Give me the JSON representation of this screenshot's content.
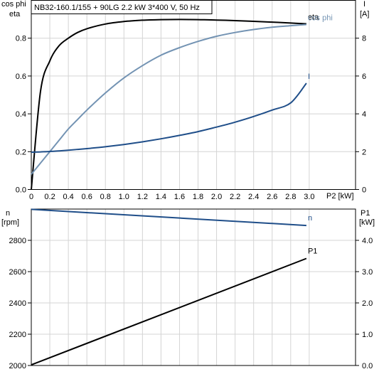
{
  "title": "NB32-160.1/155 + 90LG   2.2 kW   3*400 V, 50 Hz",
  "colors": {
    "eta": "#000000",
    "cos_phi": "#7393b3",
    "I": "#1f4e89",
    "n": "#1f4e89",
    "P1": "#000000",
    "grid": "#d4d4d4"
  },
  "chart_data": [
    {
      "type": "line",
      "x": [
        0,
        0.1,
        0.2,
        0.3,
        0.4,
        0.5,
        0.6,
        0.8,
        1.0,
        1.2,
        1.4,
        1.6,
        1.8,
        2.0,
        2.2,
        2.4,
        2.6,
        2.8,
        2.97
      ],
      "xlabel": "P2 [kW]",
      "xlim": [
        0,
        3.5
      ],
      "xticks": [
        "0",
        "0.2",
        "0.4",
        "0.6",
        "0.8",
        "1.0",
        "1.2",
        "1.4",
        "1.6",
        "1.8",
        "2.0",
        "2.2",
        "2.4",
        "2.6",
        "2.8",
        "3.0"
      ],
      "ylabel_left": [
        "cos phi",
        "eta"
      ],
      "ylim_left": [
        0,
        1.0
      ],
      "yticks_left": [
        "0.0",
        "0.2",
        "0.4",
        "0.6",
        "0.8"
      ],
      "ylabel_right": [
        "I",
        "[A]"
      ],
      "ylim_right": [
        0,
        10
      ],
      "yticks_right": [
        "0",
        "2",
        "4",
        "6",
        "8"
      ],
      "grid": true,
      "series": [
        {
          "name": "eta",
          "axis": "left",
          "values": [
            0.0,
            0.52,
            0.68,
            0.76,
            0.8,
            0.83,
            0.85,
            0.875,
            0.888,
            0.895,
            0.898,
            0.899,
            0.898,
            0.896,
            0.893,
            0.889,
            0.885,
            0.88,
            0.876
          ]
        },
        {
          "name": "cos phi",
          "axis": "left",
          "values": [
            0.08,
            0.14,
            0.2,
            0.26,
            0.32,
            0.37,
            0.42,
            0.51,
            0.59,
            0.655,
            0.71,
            0.75,
            0.783,
            0.81,
            0.83,
            0.846,
            0.858,
            0.866,
            0.872
          ]
        },
        {
          "name": "I",
          "axis": "right",
          "values": [
            1.97,
            1.99,
            2.01,
            2.04,
            2.08,
            2.12,
            2.16,
            2.26,
            2.38,
            2.52,
            2.68,
            2.86,
            3.06,
            3.3,
            3.56,
            3.86,
            4.2,
            4.58,
            5.62
          ]
        }
      ]
    },
    {
      "type": "line",
      "x": [
        0,
        2.97
      ],
      "xlim": [
        0,
        3.5
      ],
      "ylabel_left": [
        "n",
        "[rpm]"
      ],
      "ylim_left": [
        2000,
        3000
      ],
      "yticks_left": [
        "2000",
        "2200",
        "2400",
        "2600",
        "2800"
      ],
      "ylabel_right": [
        "P1",
        "[kW]"
      ],
      "ylim_right": [
        0,
        5.0
      ],
      "yticks_right": [
        "0.0",
        "1.0",
        "2.0",
        "3.0",
        "4.0"
      ],
      "grid": true,
      "series": [
        {
          "name": "n",
          "axis": "left",
          "values": [
            2998,
            2895
          ]
        },
        {
          "name": "P1",
          "axis": "right",
          "values": [
            0.02,
            3.42
          ]
        }
      ]
    }
  ]
}
